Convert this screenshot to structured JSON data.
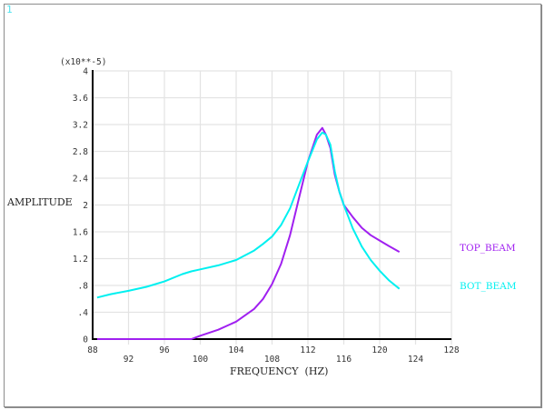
{
  "window": {
    "number": "1"
  },
  "chart_data": {
    "type": "line",
    "title": "",
    "xlabel": "FREQUENCY  (HZ)",
    "ylabel": "AMPLITUDE",
    "y_multiplier": "(x10**-5)",
    "xlim": [
      88,
      128
    ],
    "ylim": [
      0,
      4
    ],
    "grid": true,
    "legend_position": "right",
    "x_ticks": [
      "88",
      "92",
      "96",
      "100",
      "104",
      "108",
      "112",
      "116",
      "120",
      "124",
      "128"
    ],
    "y_ticks": [
      "0",
      ".4",
      ".8",
      "1.2",
      "1.6",
      "2",
      "2.4",
      "2.8",
      "3.2",
      "3.6",
      "4"
    ],
    "series": [
      {
        "name": "TOP_BEAM",
        "color": "#a020f0",
        "x": [
          88.5,
          90,
          92,
          94,
          96,
          98,
          99,
          100,
          102,
          104,
          106,
          107,
          108,
          109,
          110,
          111,
          112,
          113,
          113.6,
          114,
          114.5,
          115,
          115.5,
          116,
          117,
          118,
          119,
          120,
          121,
          122.2
        ],
        "values": [
          0,
          0,
          0,
          0,
          0,
          0,
          0,
          0.05,
          0.14,
          0.26,
          0.45,
          0.6,
          0.82,
          1.12,
          1.55,
          2.1,
          2.65,
          3.05,
          3.15,
          3.05,
          2.85,
          2.45,
          2.2,
          2.0,
          1.82,
          1.66,
          1.55,
          1.47,
          1.39,
          1.3
        ]
      },
      {
        "name": "BOT_BEAM",
        "color": "#00f0f0",
        "x": [
          88.5,
          90,
          92,
          94,
          96,
          98,
          99,
          100,
          102,
          104,
          106,
          107,
          108,
          109,
          110,
          111,
          112,
          113,
          113.6,
          114,
          114.5,
          115,
          115.5,
          116,
          117,
          118,
          119,
          120,
          121,
          122.2
        ],
        "values": [
          0.62,
          0.67,
          0.72,
          0.78,
          0.86,
          0.97,
          1.01,
          1.04,
          1.1,
          1.18,
          1.32,
          1.42,
          1.53,
          1.7,
          1.95,
          2.3,
          2.65,
          2.98,
          3.08,
          3.05,
          2.9,
          2.5,
          2.2,
          2.0,
          1.65,
          1.38,
          1.18,
          1.02,
          0.88,
          0.75
        ]
      }
    ]
  }
}
